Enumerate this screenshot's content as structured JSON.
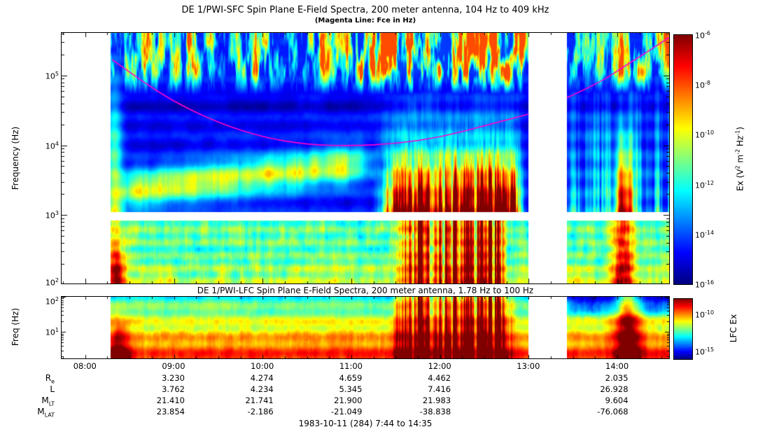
{
  "chart_data": [
    {
      "type": "heatmap",
      "instrument": "DE 1/PWI-SFC",
      "title": "DE 1/PWI-SFC  Spin Plane E-Field Spectra, 200 meter antenna, 104 Hz to 409 kHz",
      "subtitle": "(Magenta Line: Fce in Hz)",
      "ylabel": "Frequency (Hz)",
      "yscale": "log",
      "ylim_hz": [
        104,
        409000
      ],
      "ytick_exponents": [
        5,
        4,
        3,
        2
      ],
      "time_start": "07:44",
      "time_end": "14:35",
      "xticks": [
        "08:00",
        "09:00",
        "10:00",
        "11:00",
        "12:00",
        "13:00",
        "14:00"
      ],
      "data_start": "08:17",
      "data_gap": [
        "13:00",
        "13:26"
      ],
      "colorbar": {
        "label_parts": [
          {
            "t": "Ex (V"
          },
          {
            "t": "2",
            "sup": true
          },
          {
            "t": " m"
          },
          {
            "t": "-2",
            "sup": true
          },
          {
            "t": " Hz"
          },
          {
            "t": "-1",
            "sup": true
          },
          {
            "t": ")"
          }
        ],
        "tick_exponents": [
          -6,
          -8,
          -10,
          -12,
          -14,
          -16
        ],
        "scale_exponents": [
          -6,
          -16
        ]
      },
      "overlay_line": {
        "name": "Fce",
        "color": "#ff00cc",
        "points": [
          {
            "h": 8.3,
            "hz": 170000
          },
          {
            "h": 8.6,
            "hz": 90000
          },
          {
            "h": 9.0,
            "hz": 42000
          },
          {
            "h": 9.5,
            "hz": 21000
          },
          {
            "h": 10.0,
            "hz": 13000
          },
          {
            "h": 10.5,
            "hz": 10200
          },
          {
            "h": 11.0,
            "hz": 9800
          },
          {
            "h": 11.5,
            "hz": 10500
          },
          {
            "h": 12.0,
            "hz": 13000
          },
          {
            "h": 12.5,
            "hz": 19000
          },
          {
            "h": 13.0,
            "hz": 28000
          },
          {
            "h": 13.43,
            "hz": 48000
          },
          {
            "h": 13.8,
            "hz": 79000
          },
          {
            "h": 14.1,
            "hz": 141000
          },
          {
            "h": 14.35,
            "hz": 224000
          },
          {
            "h": 14.58,
            "hz": 350000
          }
        ]
      }
    },
    {
      "type": "heatmap",
      "instrument": "DE 1/PWI-LFC",
      "title": "DE 1/PWI-LFC  Spin Plane E-Field Spectra, 200 meter antenna, 1.78 Hz to 100 Hz",
      "ylabel": "Freq (Hz)",
      "yscale": "log",
      "ylim_hz": [
        1.78,
        100
      ],
      "ytick_exponents": [
        2,
        1
      ],
      "colorbar": {
        "label": "LFC Ex",
        "tick_exponents": [
          -10,
          -15
        ],
        "scale_exponents": [
          -8,
          -16
        ]
      }
    }
  ],
  "ephemeris": {
    "row_labels": [
      {
        "main": "R",
        "sub": "e"
      },
      {
        "main": "L",
        "sub": ""
      },
      {
        "main": "M",
        "sub": "LT"
      },
      {
        "main": "M",
        "sub": "LAT"
      }
    ],
    "columns": [
      "09:00",
      "10:00",
      "11:00",
      "12:00",
      "14:00"
    ],
    "rows": [
      [
        "3.230",
        "4.274",
        "4.659",
        "4.462",
        "2.035"
      ],
      [
        "3.762",
        "4.234",
        "5.345",
        "7.416",
        "26.928"
      ],
      [
        "21.410",
        "21.741",
        "21.900",
        "21.983",
        "9.604"
      ],
      [
        "23.854",
        "-2.186",
        "-21.049",
        "-38.838",
        "-76.068"
      ]
    ]
  },
  "footer": "1983-10-11 (284) 7:44 to 14:35"
}
